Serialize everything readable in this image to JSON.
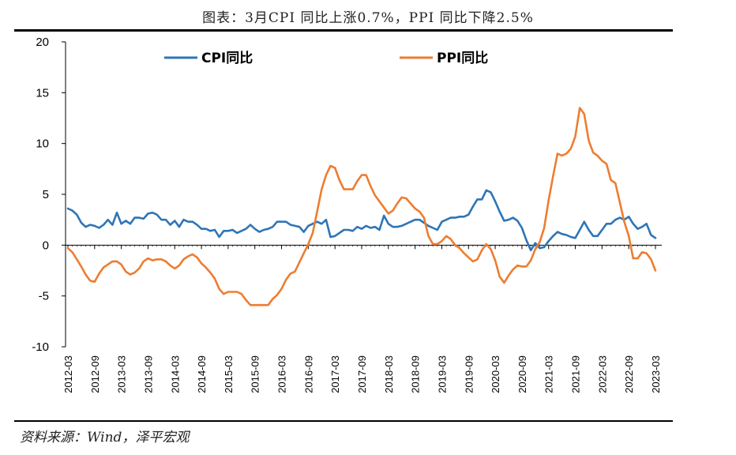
{
  "title": "图表：3月CPI 同比上涨0.7%，PPI 同比下降2.5%",
  "source": "资料来源：Wind，泽平宏观",
  "chart_data": {
    "type": "line",
    "title": "图表：3月CPI 同比上涨0.7%，PPI 同比下降2.5%",
    "xlabel": "",
    "ylabel": "",
    "ylim": [
      -10,
      20
    ],
    "yticks": [
      20,
      15,
      10,
      5,
      0,
      -5,
      -10
    ],
    "grid": false,
    "legend_position": "top",
    "x_tick_labels": [
      "2012-03",
      "2012-09",
      "2013-03",
      "2013-09",
      "2014-03",
      "2014-09",
      "2015-03",
      "2015-09",
      "2016-03",
      "2016-09",
      "2017-03",
      "2017-09",
      "2018-03",
      "2018-09",
      "2019-03",
      "2019-09",
      "2020-03",
      "2020-09",
      "2021-03",
      "2021-09",
      "2022-03",
      "2022-09",
      "2023-03"
    ],
    "x": [
      "2012-03",
      "2012-04",
      "2012-05",
      "2012-06",
      "2012-07",
      "2012-08",
      "2012-09",
      "2012-10",
      "2012-11",
      "2012-12",
      "2013-01",
      "2013-02",
      "2013-03",
      "2013-04",
      "2013-05",
      "2013-06",
      "2013-07",
      "2013-08",
      "2013-09",
      "2013-10",
      "2013-11",
      "2013-12",
      "2014-01",
      "2014-02",
      "2014-03",
      "2014-04",
      "2014-05",
      "2014-06",
      "2014-07",
      "2014-08",
      "2014-09",
      "2014-10",
      "2014-11",
      "2014-12",
      "2015-01",
      "2015-02",
      "2015-03",
      "2015-04",
      "2015-05",
      "2015-06",
      "2015-07",
      "2015-08",
      "2015-09",
      "2015-10",
      "2015-11",
      "2015-12",
      "2016-01",
      "2016-02",
      "2016-03",
      "2016-04",
      "2016-05",
      "2016-06",
      "2016-07",
      "2016-08",
      "2016-09",
      "2016-10",
      "2016-11",
      "2016-12",
      "2017-01",
      "2017-02",
      "2017-03",
      "2017-04",
      "2017-05",
      "2017-06",
      "2017-07",
      "2017-08",
      "2017-09",
      "2017-10",
      "2017-11",
      "2017-12",
      "2018-01",
      "2018-02",
      "2018-03",
      "2018-04",
      "2018-05",
      "2018-06",
      "2018-07",
      "2018-08",
      "2018-09",
      "2018-10",
      "2018-11",
      "2018-12",
      "2019-01",
      "2019-02",
      "2019-03",
      "2019-04",
      "2019-05",
      "2019-06",
      "2019-07",
      "2019-08",
      "2019-09",
      "2019-10",
      "2019-11",
      "2019-12",
      "2020-01",
      "2020-02",
      "2020-03",
      "2020-04",
      "2020-05",
      "2020-06",
      "2020-07",
      "2020-08",
      "2020-09",
      "2020-10",
      "2020-11",
      "2020-12",
      "2021-01",
      "2021-02",
      "2021-03",
      "2021-04",
      "2021-05",
      "2021-06",
      "2021-07",
      "2021-08",
      "2021-09",
      "2021-10",
      "2021-11",
      "2021-12",
      "2022-01",
      "2022-02",
      "2022-03",
      "2022-04",
      "2022-05",
      "2022-06",
      "2022-07",
      "2022-08",
      "2022-09",
      "2022-10",
      "2022-11",
      "2022-12",
      "2023-01",
      "2023-02",
      "2023-03"
    ],
    "series": [
      {
        "name": "CPI同比",
        "color": "#2E75B6",
        "values": [
          3.6,
          3.4,
          3.0,
          2.2,
          1.8,
          2.0,
          1.9,
          1.7,
          2.0,
          2.5,
          2.0,
          3.2,
          2.1,
          2.4,
          2.1,
          2.7,
          2.7,
          2.6,
          3.1,
          3.2,
          3.0,
          2.5,
          2.5,
          2.0,
          2.4,
          1.8,
          2.5,
          2.3,
          2.3,
          2.0,
          1.6,
          1.6,
          1.4,
          1.5,
          0.8,
          1.4,
          1.4,
          1.5,
          1.2,
          1.4,
          1.6,
          2.0,
          1.6,
          1.3,
          1.5,
          1.6,
          1.8,
          2.3,
          2.3,
          2.3,
          2.0,
          1.9,
          1.8,
          1.3,
          1.9,
          2.1,
          2.3,
          2.1,
          2.5,
          0.8,
          0.9,
          1.2,
          1.5,
          1.5,
          1.4,
          1.8,
          1.6,
          1.9,
          1.7,
          1.8,
          1.5,
          2.9,
          2.1,
          1.8,
          1.8,
          1.9,
          2.1,
          2.3,
          2.5,
          2.5,
          2.2,
          1.9,
          1.7,
          1.5,
          2.3,
          2.5,
          2.7,
          2.7,
          2.8,
          2.8,
          3.0,
          3.8,
          4.5,
          4.5,
          5.4,
          5.2,
          4.3,
          3.3,
          2.4,
          2.5,
          2.7,
          2.4,
          1.7,
          0.5,
          -0.5,
          0.2,
          -0.3,
          -0.2,
          0.4,
          0.9,
          1.3,
          1.1,
          1.0,
          0.8,
          0.7,
          1.5,
          2.3,
          1.5,
          0.9,
          0.9,
          1.5,
          2.1,
          2.1,
          2.5,
          2.7,
          2.5,
          2.8,
          2.1,
          1.6,
          1.8,
          2.1,
          1.0,
          0.7
        ]
      },
      {
        "name": "PPI同比",
        "color": "#ED7D31",
        "values": [
          -0.3,
          -0.7,
          -1.4,
          -2.1,
          -2.9,
          -3.5,
          -3.6,
          -2.8,
          -2.2,
          -1.9,
          -1.6,
          -1.6,
          -1.9,
          -2.6,
          -2.9,
          -2.7,
          -2.3,
          -1.6,
          -1.3,
          -1.5,
          -1.4,
          -1.4,
          -1.6,
          -2.0,
          -2.3,
          -2.0,
          -1.4,
          -1.1,
          -0.9,
          -1.2,
          -1.8,
          -2.2,
          -2.7,
          -3.3,
          -4.3,
          -4.8,
          -4.6,
          -4.6,
          -4.6,
          -4.8,
          -5.4,
          -5.9,
          -5.9,
          -5.9,
          -5.9,
          -5.9,
          -5.3,
          -4.9,
          -4.3,
          -3.4,
          -2.8,
          -2.6,
          -1.7,
          -0.8,
          0.1,
          1.2,
          3.3,
          5.5,
          6.9,
          7.8,
          7.6,
          6.4,
          5.5,
          5.5,
          5.5,
          6.3,
          6.9,
          6.9,
          5.8,
          4.9,
          4.3,
          3.7,
          3.1,
          3.4,
          4.1,
          4.7,
          4.6,
          4.1,
          3.6,
          3.3,
          2.7,
          0.9,
          0.1,
          0.1,
          0.4,
          0.9,
          0.6,
          0.0,
          -0.3,
          -0.8,
          -1.2,
          -1.6,
          -1.4,
          -0.5,
          0.1,
          -0.4,
          -1.5,
          -3.1,
          -3.7,
          -3.0,
          -2.4,
          -2.0,
          -2.1,
          -2.1,
          -1.5,
          -0.4,
          0.3,
          1.7,
          4.4,
          6.8,
          9.0,
          8.8,
          9.0,
          9.5,
          10.7,
          13.5,
          12.9,
          10.3,
          9.1,
          8.8,
          8.3,
          8.0,
          6.4,
          6.1,
          4.2,
          2.3,
          0.9,
          -1.3,
          -1.3,
          -0.7,
          -0.8,
          -1.4,
          -2.5
        ]
      }
    ]
  }
}
